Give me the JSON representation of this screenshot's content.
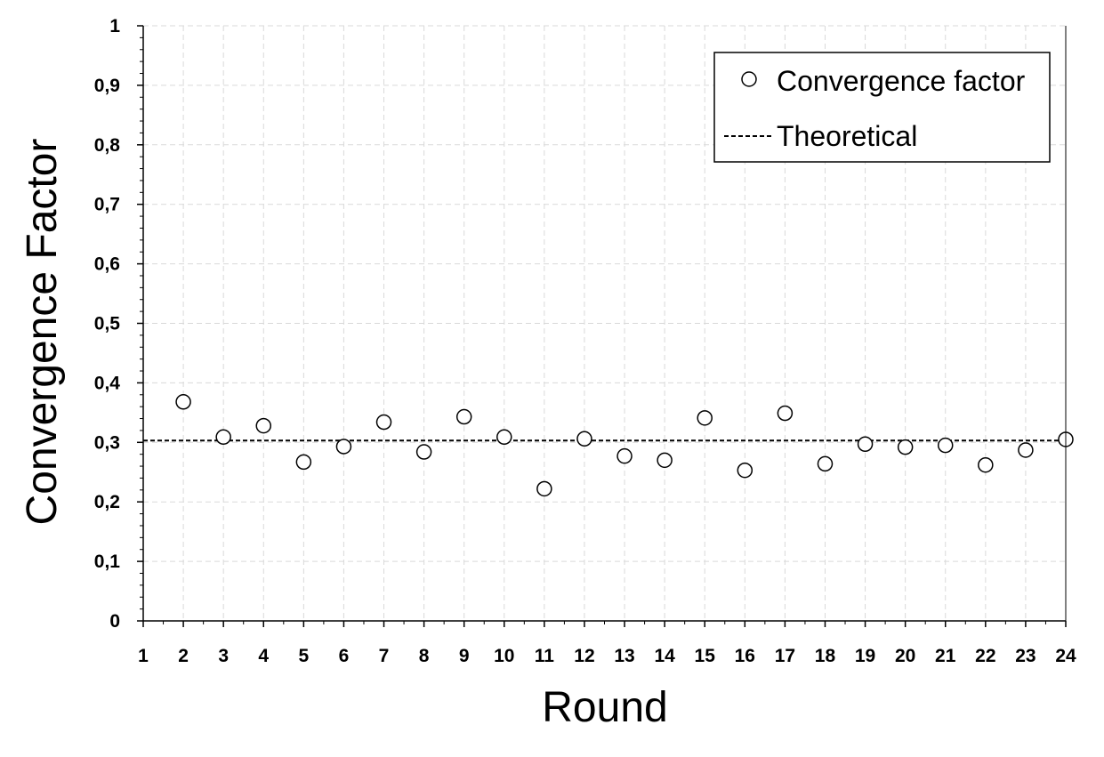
{
  "chart_data": {
    "type": "scatter",
    "title": "",
    "xlabel": "Round",
    "ylabel": "Convergence Factor",
    "xlim": [
      1,
      24
    ],
    "ylim": [
      0,
      1
    ],
    "x_ticks": [
      "1",
      "2",
      "3",
      "4",
      "5",
      "6",
      "7",
      "8",
      "9",
      "10",
      "11",
      "12",
      "13",
      "14",
      "15",
      "16",
      "17",
      "18",
      "19",
      "20",
      "21",
      "22",
      "23",
      "24"
    ],
    "y_ticks": [
      "0",
      "0,1",
      "0,2",
      "0,3",
      "0,4",
      "0,5",
      "0,6",
      "0,7",
      "0,8",
      "0,9",
      "1"
    ],
    "grid": true,
    "legend_position": "top-right",
    "series": [
      {
        "name": "Convergence factor",
        "marker": "open-circle",
        "x": [
          2,
          3,
          4,
          5,
          6,
          7,
          8,
          9,
          10,
          11,
          12,
          13,
          14,
          15,
          16,
          17,
          18,
          19,
          20,
          21,
          22,
          23,
          24
        ],
        "y": [
          0.368,
          0.309,
          0.328,
          0.267,
          0.293,
          0.334,
          0.284,
          0.343,
          0.309,
          0.222,
          0.306,
          0.277,
          0.27,
          0.341,
          0.253,
          0.349,
          0.264,
          0.297,
          0.292,
          0.295,
          0.262,
          0.287,
          0.305
        ]
      },
      {
        "name": "Theoretical",
        "style": "dashed-line",
        "y": 0.303
      }
    ],
    "colors": {
      "marker_fill": "#ffffff",
      "stroke": "#000000",
      "grid": "#d9d9d9"
    }
  }
}
